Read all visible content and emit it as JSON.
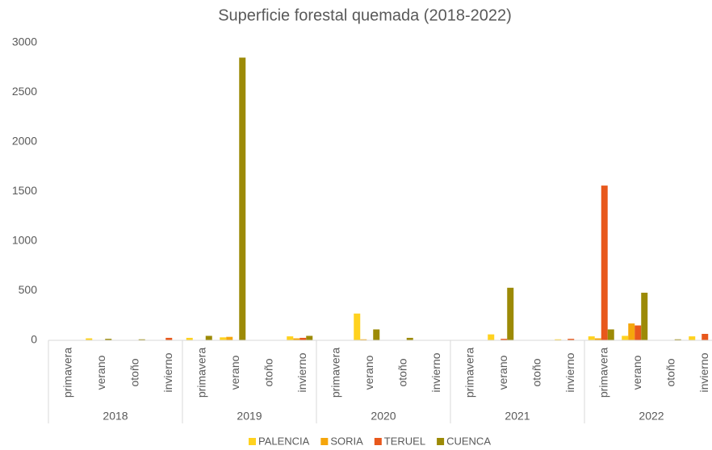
{
  "chart_data": {
    "type": "bar",
    "title": "Superficie forestal quemada (2018-2022)",
    "categories": [
      "primavera",
      "verano",
      "otoño",
      "invierno",
      "primavera",
      "verano",
      "otoño",
      "invierno",
      "primavera",
      "verano",
      "otoño",
      "invierno",
      "primavera",
      "verano",
      "otoño",
      "invierno",
      "primavera",
      "verano",
      "otoño",
      "invierno"
    ],
    "groups": [
      "2018",
      "2019",
      "2020",
      "2021",
      "2022"
    ],
    "series": [
      {
        "name": "PALENCIA",
        "color": "#ffd21f",
        "values": [
          0,
          20,
          0,
          0,
          25,
          30,
          0,
          40,
          0,
          270,
          0,
          0,
          0,
          60,
          0,
          10,
          40,
          45,
          0,
          40
        ]
      },
      {
        "name": "SORIA",
        "color": "#f5a60c",
        "values": [
          0,
          0,
          0,
          0,
          0,
          35,
          0,
          20,
          0,
          10,
          0,
          0,
          0,
          0,
          0,
          0,
          20,
          170,
          0,
          0
        ]
      },
      {
        "name": "TERUEL",
        "color": "#e8581c",
        "values": [
          0,
          0,
          0,
          25,
          0,
          0,
          0,
          25,
          0,
          0,
          0,
          0,
          0,
          15,
          0,
          15,
          1560,
          150,
          0,
          65
        ]
      },
      {
        "name": "CUENCA",
        "color": "#9c8a06",
        "values": [
          0,
          15,
          10,
          0,
          45,
          2850,
          0,
          45,
          0,
          110,
          25,
          0,
          0,
          530,
          0,
          0,
          110,
          480,
          10,
          0
        ]
      }
    ],
    "ylim": [
      0,
      3000
    ],
    "yticks": [
      0,
      500,
      1000,
      1500,
      2000,
      2500,
      3000
    ],
    "grid": false,
    "legend": "bottom"
  }
}
